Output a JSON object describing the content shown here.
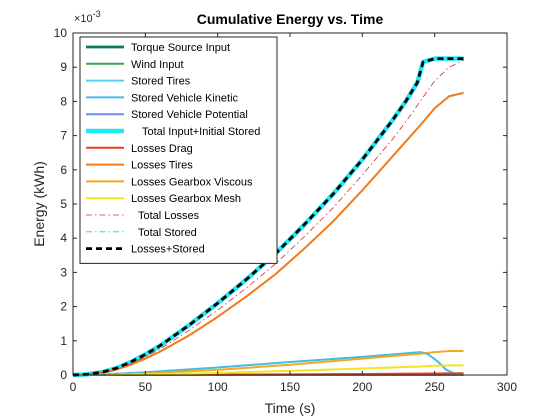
{
  "chart_data": {
    "type": "line",
    "title": "Cumulative Energy vs. Time",
    "xlabel": "Time (s)",
    "ylabel": "Energy (kWh)",
    "y_exponent_label": "×10",
    "y_exponent_power": "-3",
    "xlim": [
      0,
      300
    ],
    "ylim": [
      0,
      10
    ],
    "xticks": [
      "0",
      "50",
      "100",
      "150",
      "200",
      "250",
      "300"
    ],
    "yticks": [
      "0",
      "1",
      "2",
      "3",
      "4",
      "5",
      "6",
      "7",
      "8",
      "9",
      "10"
    ],
    "grid": false,
    "legend_position": "top-left",
    "series": [
      {
        "name": "Torque Source Input",
        "color": "#0b7a5e",
        "dash": "solid",
        "width": "thick",
        "x": [
          0,
          10,
          20,
          30,
          40,
          50,
          60,
          80,
          100,
          120,
          140,
          160,
          180,
          200,
          220,
          230,
          238,
          242,
          250,
          260,
          270
        ],
        "y": [
          0,
          0.02,
          0.08,
          0.2,
          0.38,
          0.6,
          0.85,
          1.45,
          2.1,
          2.8,
          3.55,
          4.4,
          5.3,
          6.3,
          7.4,
          8.0,
          8.55,
          9.15,
          9.25,
          9.25,
          9.25
        ]
      },
      {
        "name": "Wind Input",
        "color": "#3fa34d",
        "dash": "solid",
        "width": "normal",
        "x": [
          0,
          270
        ],
        "y": [
          0,
          0
        ]
      },
      {
        "name": "Stored Tires",
        "color": "#4dd0f5",
        "dash": "solid",
        "width": "normal",
        "x": [
          0,
          270
        ],
        "y": [
          0,
          0
        ]
      },
      {
        "name": "Stored Vehicle Kinetic",
        "color": "#4db8ea",
        "dash": "solid",
        "width": "normal",
        "x": [
          0,
          20,
          50,
          100,
          150,
          200,
          240,
          245,
          252,
          258,
          265,
          270
        ],
        "y": [
          0,
          0.02,
          0.08,
          0.22,
          0.38,
          0.53,
          0.67,
          0.62,
          0.4,
          0.15,
          0.02,
          0
        ]
      },
      {
        "name": "Stored Vehicle Potential",
        "color": "#6b8cf0",
        "dash": "solid",
        "width": "normal",
        "x": [
          0,
          270
        ],
        "y": [
          0,
          0
        ]
      },
      {
        "name": "Total Input+Initial Stored",
        "color": "#1ee8f5",
        "dash": "solid",
        "width": "heavy",
        "x": [
          0,
          10,
          20,
          30,
          40,
          50,
          60,
          80,
          100,
          120,
          140,
          160,
          180,
          200,
          220,
          230,
          238,
          242,
          250,
          260,
          270
        ],
        "y": [
          0,
          0.02,
          0.08,
          0.2,
          0.38,
          0.6,
          0.85,
          1.45,
          2.1,
          2.8,
          3.55,
          4.4,
          5.3,
          6.3,
          7.4,
          8.0,
          8.55,
          9.15,
          9.25,
          9.25,
          9.25
        ]
      },
      {
        "name": "Losses Drag",
        "color": "#e8411d",
        "dash": "solid",
        "width": "normal",
        "x": [
          0,
          100,
          200,
          270
        ],
        "y": [
          0,
          0.01,
          0.03,
          0.05
        ]
      },
      {
        "name": "Losses Tires",
        "color": "#f07a1c",
        "dash": "solid",
        "width": "normal",
        "x": [
          0,
          10,
          20,
          30,
          40,
          50,
          60,
          80,
          100,
          120,
          140,
          160,
          180,
          200,
          220,
          240,
          250,
          260,
          270
        ],
        "y": [
          0,
          0.02,
          0.06,
          0.16,
          0.3,
          0.48,
          0.68,
          1.15,
          1.7,
          2.3,
          2.95,
          3.7,
          4.5,
          5.4,
          6.35,
          7.3,
          7.8,
          8.15,
          8.25
        ]
      },
      {
        "name": "Losses Gearbox Viscous",
        "color": "#f2a91f",
        "dash": "solid",
        "width": "normal",
        "x": [
          0,
          50,
          100,
          150,
          200,
          240,
          250,
          260,
          270
        ],
        "y": [
          0,
          0.05,
          0.15,
          0.3,
          0.48,
          0.62,
          0.67,
          0.7,
          0.7
        ]
      },
      {
        "name": "Losses Gearbox Mesh",
        "color": "#f2e51f",
        "dash": "solid",
        "width": "normal",
        "x": [
          0,
          50,
          100,
          150,
          200,
          240,
          250,
          260,
          270
        ],
        "y": [
          0,
          0.02,
          0.06,
          0.12,
          0.19,
          0.25,
          0.27,
          0.28,
          0.28
        ]
      },
      {
        "name": "Total Losses",
        "color": "#d42b2b",
        "dash": "dashdot",
        "width": "thin",
        "x": [
          0,
          10,
          20,
          30,
          40,
          50,
          60,
          80,
          100,
          120,
          140,
          160,
          180,
          200,
          220,
          230,
          240,
          250,
          260,
          270
        ],
        "y": [
          0,
          0.02,
          0.07,
          0.18,
          0.33,
          0.53,
          0.75,
          1.3,
          1.9,
          2.55,
          3.25,
          4.05,
          4.9,
          5.85,
          6.85,
          7.4,
          8.0,
          8.6,
          9.0,
          9.2
        ]
      },
      {
        "name": "Total Stored",
        "color": "#1ec8d9",
        "dash": "dashdot",
        "width": "thin",
        "x": [
          0,
          20,
          50,
          100,
          150,
          200,
          240,
          245,
          252,
          258,
          265,
          270
        ],
        "y": [
          0,
          0.02,
          0.08,
          0.22,
          0.38,
          0.53,
          0.67,
          0.62,
          0.4,
          0.15,
          0.02,
          0
        ]
      },
      {
        "name": "Losses+Stored",
        "color": "#000000",
        "dash": "dashed",
        "width": "thick",
        "x": [
          0,
          10,
          20,
          30,
          40,
          50,
          60,
          80,
          100,
          120,
          140,
          160,
          180,
          200,
          220,
          230,
          238,
          242,
          250,
          260,
          270
        ],
        "y": [
          0,
          0.02,
          0.08,
          0.2,
          0.38,
          0.6,
          0.85,
          1.45,
          2.1,
          2.8,
          3.55,
          4.4,
          5.3,
          6.3,
          7.4,
          8.0,
          8.55,
          9.15,
          9.25,
          9.25,
          9.25
        ]
      }
    ]
  }
}
